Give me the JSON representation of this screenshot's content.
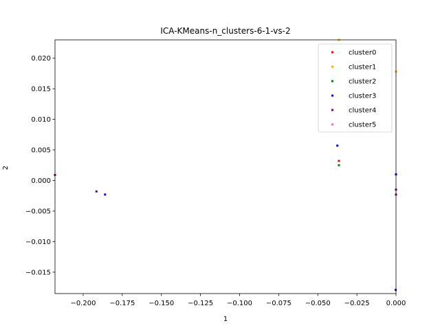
{
  "chart_data": {
    "type": "scatter",
    "title": "ICA-KMeans-n_clusters-6-1-vs-2",
    "xlabel": "1",
    "ylabel": "2",
    "xlim": [
      -0.218,
      0.0
    ],
    "ylim": [
      -0.0185,
      0.023
    ],
    "x_ticks": [
      -0.2,
      -0.175,
      -0.15,
      -0.125,
      -0.1,
      -0.075,
      -0.05,
      -0.025,
      0.0
    ],
    "x_tick_labels": [
      "−0.200",
      "−0.175",
      "−0.150",
      "−0.125",
      "−0.100",
      "−0.075",
      "−0.050",
      "−0.025",
      "0.000"
    ],
    "y_ticks": [
      -0.015,
      -0.01,
      -0.005,
      0.0,
      0.005,
      0.01,
      0.015,
      0.02
    ],
    "y_tick_labels": [
      "−0.015",
      "−0.010",
      "−0.005",
      "0.000",
      "0.005",
      "0.010",
      "0.015",
      "0.020"
    ],
    "grid": false,
    "legend_position": "top-right",
    "series": [
      {
        "name": "cluster0",
        "color": "#ff0000",
        "points": [
          [
            -0.0365,
            0.0032
          ]
        ]
      },
      {
        "name": "cluster1",
        "color": "#ffa500",
        "points": [
          [
            0.0,
            0.0178
          ],
          [
            -0.0365,
            0.023
          ]
        ]
      },
      {
        "name": "cluster2",
        "color": "#008000",
        "points": [
          [
            -0.0365,
            0.0025
          ]
        ]
      },
      {
        "name": "cluster3",
        "color": "#0000ff",
        "points": [
          [
            -0.0375,
            0.0057
          ],
          [
            0.0,
            0.001
          ],
          [
            -0.186,
            -0.0023
          ],
          [
            -0.0002,
            -0.0179
          ]
        ]
      },
      {
        "name": "cluster4",
        "color": "#800080",
        "points": [
          [
            -0.1915,
            -0.0018
          ],
          [
            -0.218,
            0.0009
          ],
          [
            0.0,
            -0.0015
          ],
          [
            0.0,
            -0.0023
          ]
        ]
      },
      {
        "name": "cluster5",
        "color": "#ff69b4",
        "points": []
      }
    ]
  }
}
